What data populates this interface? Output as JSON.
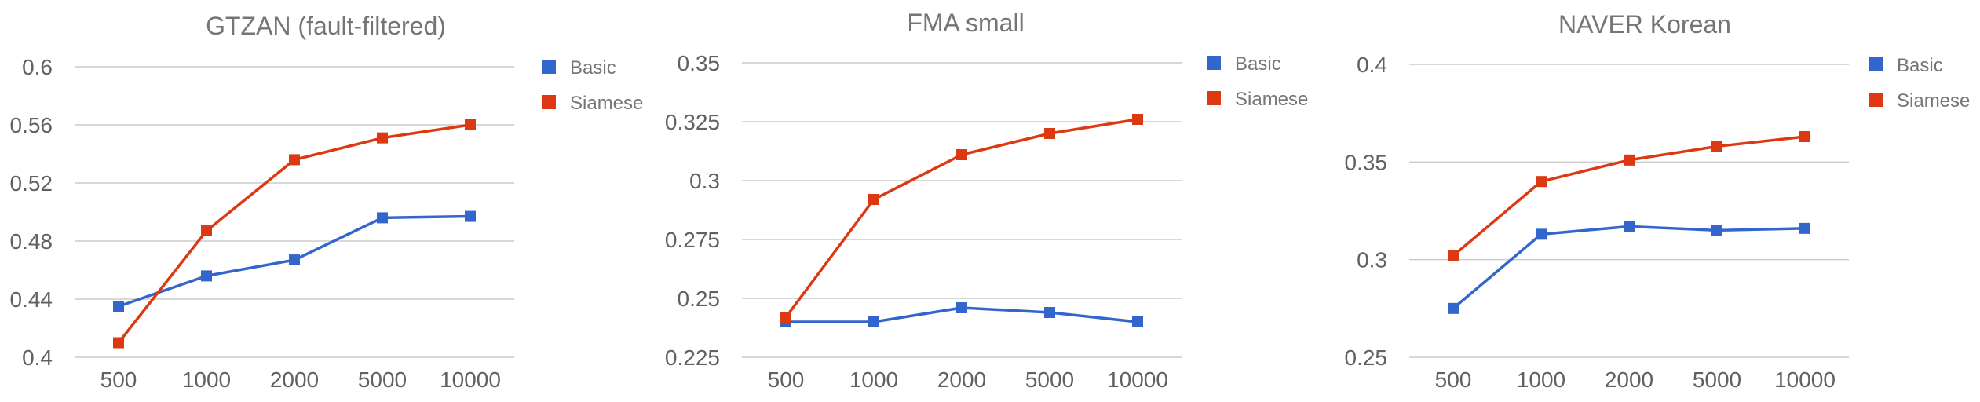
{
  "colors": {
    "basic": "#3366cc",
    "siamese": "#dc3912"
  },
  "chart_data": [
    {
      "type": "line",
      "title": "GTZAN (fault-filtered)",
      "categories": [
        "500",
        "1000",
        "2000",
        "5000",
        "10000"
      ],
      "y_ticks": [
        "0.4",
        "0.44",
        "0.48",
        "0.52",
        "0.56",
        "0.6"
      ],
      "ylim": [
        0.4,
        0.6
      ],
      "grid": true,
      "legend": "right",
      "series": [
        {
          "name": "Basic",
          "color": "#3366cc",
          "values": [
            0.435,
            0.456,
            0.467,
            0.496,
            0.497
          ]
        },
        {
          "name": "Siamese",
          "color": "#dc3912",
          "values": [
            0.41,
            0.487,
            0.536,
            0.551,
            0.56
          ]
        }
      ]
    },
    {
      "type": "line",
      "title": "FMA small",
      "categories": [
        "500",
        "1000",
        "2000",
        "5000",
        "10000"
      ],
      "y_ticks": [
        "0.225",
        "0.25",
        "0.275",
        "0.3",
        "0.325",
        "0.35"
      ],
      "ylim": [
        0.225,
        0.35
      ],
      "grid": true,
      "legend": "right",
      "series": [
        {
          "name": "Basic",
          "color": "#3366cc",
          "values": [
            0.24,
            0.24,
            0.246,
            0.244,
            0.24
          ]
        },
        {
          "name": "Siamese",
          "color": "#dc3912",
          "values": [
            0.242,
            0.292,
            0.311,
            0.32,
            0.326
          ]
        }
      ]
    },
    {
      "type": "line",
      "title": "NAVER Korean",
      "categories": [
        "500",
        "1000",
        "2000",
        "5000",
        "10000"
      ],
      "y_ticks": [
        "0.25",
        "0.3",
        "0.35",
        "0.4"
      ],
      "ylim": [
        0.25,
        0.4
      ],
      "grid": true,
      "legend": "right",
      "series": [
        {
          "name": "Basic",
          "color": "#3366cc",
          "values": [
            0.275,
            0.313,
            0.317,
            0.315,
            0.316
          ]
        },
        {
          "name": "Siamese",
          "color": "#dc3912",
          "values": [
            0.302,
            0.34,
            0.351,
            0.358,
            0.363
          ]
        }
      ]
    }
  ]
}
